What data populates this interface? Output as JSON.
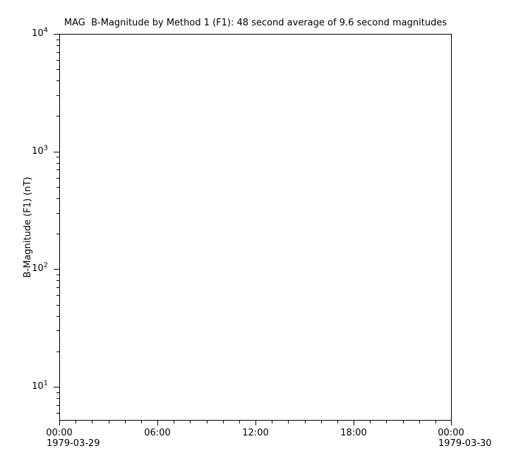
{
  "figure": {
    "background": "#ffffff",
    "text_color": "#000000",
    "axis_color": "#000000"
  },
  "chart_data": {
    "type": "line",
    "title": "MAG  B-Magnitude by Method 1 (F1): 48 second average of 9.6 second magnitudes",
    "ylabel": "B-Magnitude (F1) (nT)",
    "xlabel": "",
    "grid": false,
    "legend": "none",
    "x_axis": {
      "start_date": "1979-03-29",
      "end_date": "1979-03-30",
      "major_ticks": [
        "00:00",
        "06:00",
        "12:00",
        "18:00",
        "00:00"
      ],
      "major_tick_interval_hours": 6,
      "minor_tick_interval_hours": 1,
      "range_hours": [
        0,
        24
      ]
    },
    "y_axis": {
      "scale": "log",
      "ylim": [
        5,
        10000
      ],
      "major_ticks": [
        {
          "base": "10",
          "exponent": 4,
          "value": 10000
        },
        {
          "base": "10",
          "exponent": 3,
          "value": 1000
        },
        {
          "base": "10",
          "exponent": 2,
          "value": 100
        },
        {
          "base": "10",
          "exponent": 1,
          "value": 10
        }
      ],
      "minor_ticks_per_decade": [
        2,
        3,
        4,
        5,
        6,
        7,
        8,
        9
      ]
    },
    "series": []
  }
}
